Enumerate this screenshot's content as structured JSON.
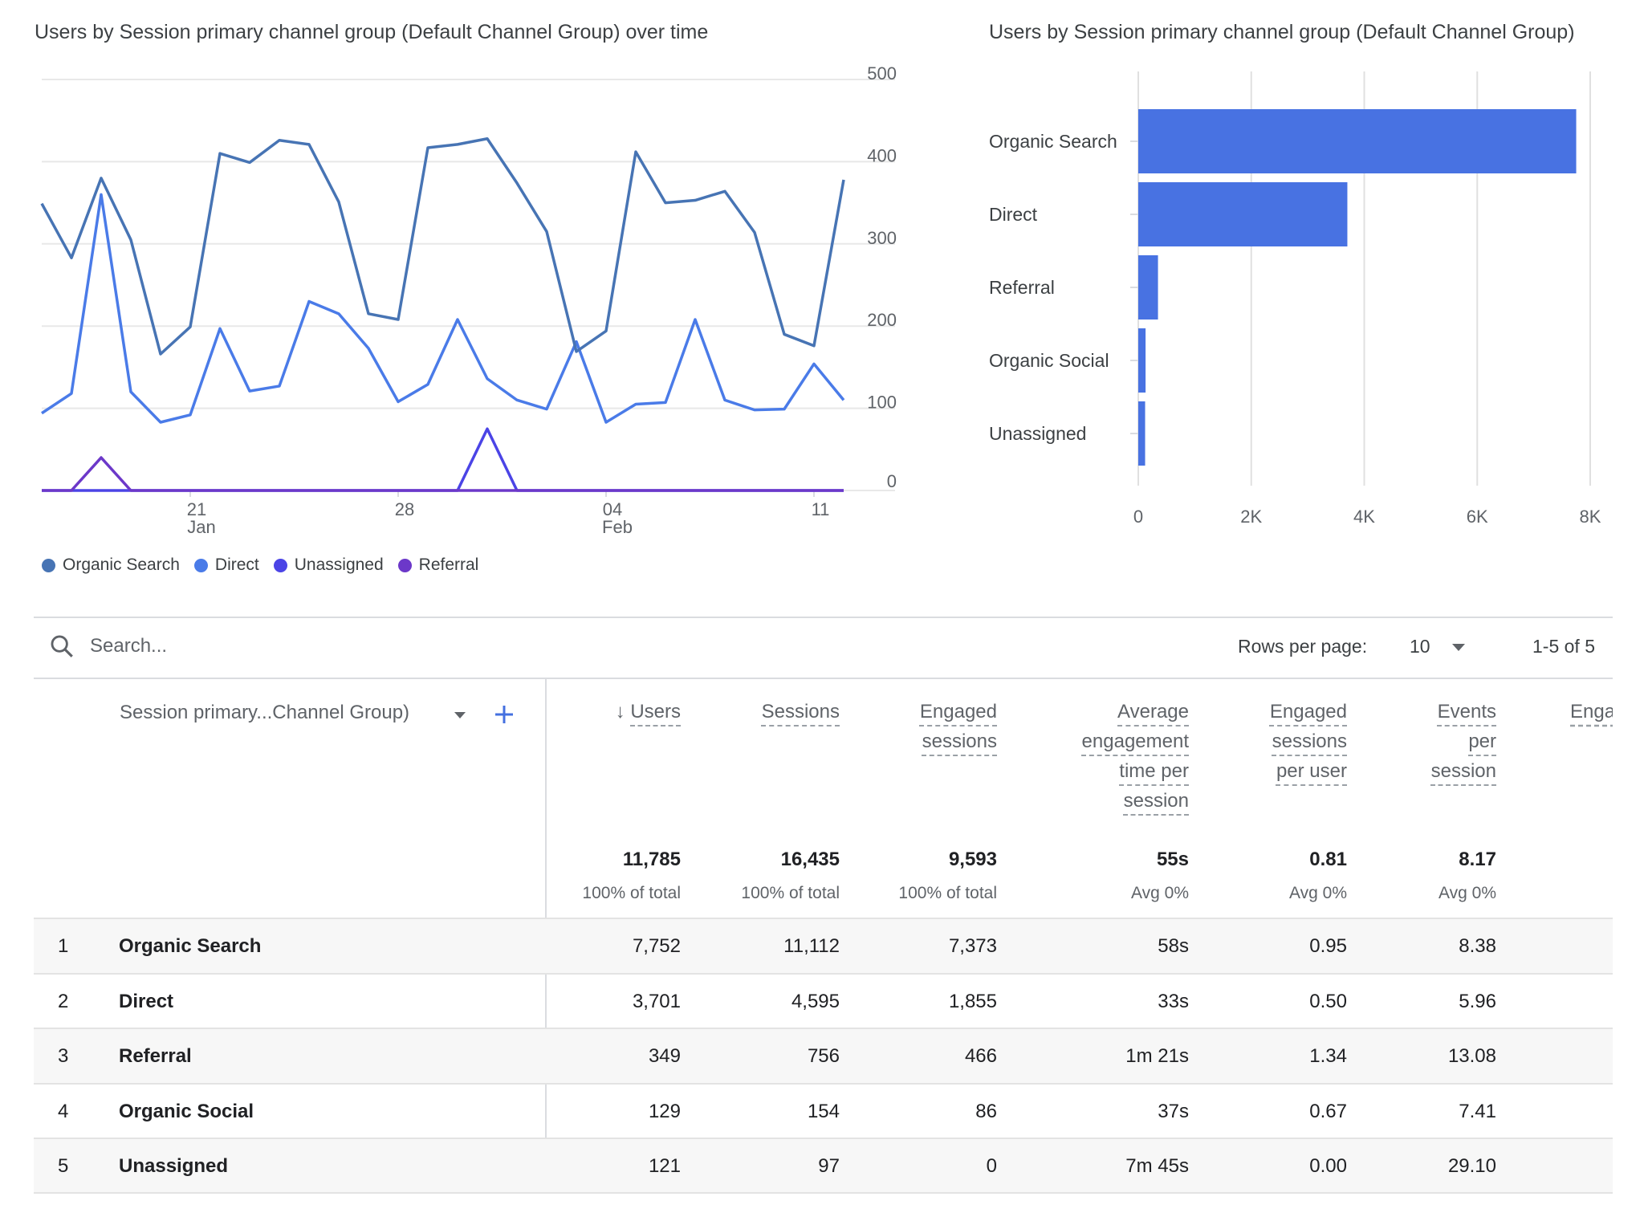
{
  "chart_data": [
    {
      "type": "line",
      "title": "Users by Session primary channel group (Default Channel Group) over time",
      "x": [
        "Jan 16",
        "Jan 17",
        "Jan 18",
        "Jan 19",
        "Jan 20",
        "Jan 21",
        "Jan 22",
        "Jan 23",
        "Jan 24",
        "Jan 25",
        "Jan 26",
        "Jan 27",
        "Jan 28",
        "Jan 29",
        "Jan 30",
        "Jan 31",
        "Feb 1",
        "Feb 2",
        "Feb 3",
        "Feb 4",
        "Feb 5",
        "Feb 6",
        "Feb 7",
        "Feb 8",
        "Feb 9",
        "Feb 10",
        "Feb 11",
        "Feb 12"
      ],
      "x_tick_labels": [
        {
          "day": "21",
          "month": "Jan"
        },
        {
          "day": "28",
          "month": ""
        },
        {
          "day": "04",
          "month": "Feb"
        },
        {
          "day": "11",
          "month": ""
        }
      ],
      "y_ticks": [
        "0",
        "100",
        "200",
        "300",
        "400",
        "500"
      ],
      "ylim": [
        0,
        500
      ],
      "y_axis_side": "right",
      "grid": true,
      "legend_position": "bottom-left",
      "series": [
        {
          "name": "Organic Search",
          "color": "#4774b4",
          "values": [
            349,
            283,
            380,
            305,
            166,
            199,
            410,
            399,
            426,
            421,
            351,
            215,
            208,
            417,
            421,
            428,
            374,
            315,
            169,
            194,
            412,
            350,
            353,
            364,
            314,
            190,
            176,
            378
          ]
        },
        {
          "name": "Direct",
          "color": "#4a7be8",
          "values": [
            94,
            118,
            360,
            120,
            83,
            92,
            197,
            121,
            127,
            230,
            215,
            173,
            108,
            129,
            208,
            136,
            110,
            99,
            181,
            83,
            105,
            107,
            208,
            110,
            98,
            99,
            154,
            110
          ]
        },
        {
          "name": "Unassigned",
          "color": "#4b44e6",
          "values": [
            0,
            0,
            0,
            0,
            0,
            0,
            0,
            0,
            0,
            0,
            0,
            0,
            0,
            0,
            0,
            75,
            0,
            0,
            0,
            0,
            0,
            0,
            0,
            0,
            0,
            0,
            0,
            0
          ]
        },
        {
          "name": "Referral",
          "color": "#6c38c9",
          "values": [
            0,
            0,
            40,
            0,
            0,
            0,
            0,
            0,
            0,
            0,
            0,
            0,
            0,
            0,
            0,
            0,
            0,
            0,
            0,
            0,
            0,
            0,
            0,
            0,
            0,
            0,
            0,
            0
          ]
        }
      ]
    },
    {
      "type": "bar",
      "orientation": "horizontal",
      "title": "Users by Session primary channel group (Default Channel Group)",
      "categories": [
        "Organic Search",
        "Direct",
        "Referral",
        "Organic Social",
        "Unassigned"
      ],
      "values": [
        7752,
        3701,
        349,
        129,
        121
      ],
      "x_ticks": [
        "0",
        "2K",
        "4K",
        "6K",
        "8K"
      ],
      "xlim": [
        0,
        8000
      ],
      "grid": true,
      "color": "#4872e2"
    }
  ],
  "search": {
    "placeholder": "Search..."
  },
  "pager": {
    "rows_label": "Rows per page:",
    "rows_value": "10",
    "range": "1-5 of 5"
  },
  "table": {
    "dimension_header": "Session primary...Channel Group)",
    "columns": [
      {
        "lines": [
          "Users"
        ],
        "sorted": true,
        "total": "11,785",
        "sub": "100% of total"
      },
      {
        "lines": [
          "Sessions"
        ],
        "total": "16,435",
        "sub": "100% of total"
      },
      {
        "lines": [
          "Engaged",
          "sessions"
        ],
        "total": "9,593",
        "sub": "100% of total"
      },
      {
        "lines": [
          "Average",
          "engagement",
          "time per",
          "session"
        ],
        "total": "55s",
        "sub": "Avg 0%"
      },
      {
        "lines": [
          "Engaged",
          "sessions",
          "per user"
        ],
        "total": "0.81",
        "sub": "Avg 0%"
      },
      {
        "lines": [
          "Events",
          "per",
          "session"
        ],
        "total": "8.17",
        "sub": "Avg 0%"
      }
    ],
    "clipped_column": "Enga",
    "rows": [
      {
        "rank": "1",
        "name": "Organic Search",
        "values": [
          "7,752",
          "11,112",
          "7,373",
          "58s",
          "0.95",
          "8.38"
        ]
      },
      {
        "rank": "2",
        "name": "Direct",
        "values": [
          "3,701",
          "4,595",
          "1,855",
          "33s",
          "0.50",
          "5.96"
        ]
      },
      {
        "rank": "3",
        "name": "Referral",
        "values": [
          "349",
          "756",
          "466",
          "1m 21s",
          "1.34",
          "13.08"
        ]
      },
      {
        "rank": "4",
        "name": "Organic Social",
        "values": [
          "129",
          "154",
          "86",
          "37s",
          "0.67",
          "7.41"
        ]
      },
      {
        "rank": "5",
        "name": "Unassigned",
        "values": [
          "121",
          "97",
          "0",
          "7m 45s",
          "0.00",
          "29.10"
        ]
      }
    ]
  }
}
